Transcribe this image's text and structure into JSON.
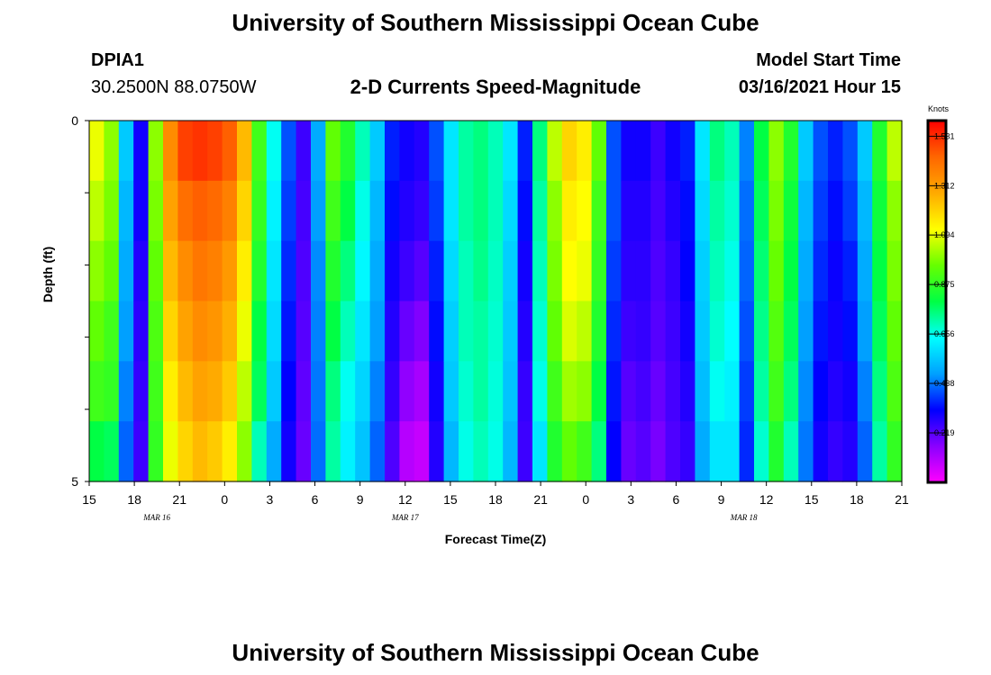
{
  "header": {
    "title": "University of Southern Mississippi Ocean Cube",
    "station": "DPIA1",
    "coords": "30.2500N 88.0750W",
    "chart_title": "2-D Currents Speed-Magnitude",
    "model_start_label": "Model Start Time",
    "model_start_value": "03/16/2021 Hour 15"
  },
  "footer": {
    "title": "University of Southern Mississippi Ocean Cube"
  },
  "colors": {
    "scale": [
      "#ff00ff",
      "#8a00ff",
      "#0000ff",
      "#00a0ff",
      "#00ffff",
      "#00ff44",
      "#66ff00",
      "#ffff00",
      "#ffaa00",
      "#ff6600",
      "#ff0000"
    ]
  },
  "chart_data": {
    "type": "heatmap",
    "title": "2-D Currents Speed-Magnitude",
    "xlabel": "Forecast Time(Z)",
    "ylabel": "Depth (ft)",
    "units": "Knots",
    "ylim": [
      0,
      5
    ],
    "y_tick_labels": [
      "0",
      "5"
    ],
    "x_tick_labels": [
      "15",
      "18",
      "21",
      "0",
      "3",
      "6",
      "9",
      "12",
      "15",
      "18",
      "21",
      "0",
      "3",
      "6",
      "9",
      "12",
      "15",
      "18",
      "21"
    ],
    "date_labels": [
      {
        "label": "MAR 16",
        "at_tick": 1.5
      },
      {
        "label": "MAR 17",
        "at_tick": 7
      },
      {
        "label": "MAR 18",
        "at_tick": 14.5
      }
    ],
    "colorbar": {
      "min": 0,
      "max": 1.6,
      "tick_labels": [
        "0.219",
        "0.438",
        "0.656",
        "0.875",
        "1.094",
        "1.312",
        "1.531"
      ]
    },
    "forecast_hours": 54,
    "depth_layers": 6,
    "speed_knots": [
      [
        1.1,
        1.05,
        1.0,
        0.95,
        0.9,
        0.8
      ],
      [
        1.0,
        0.98,
        0.95,
        0.9,
        0.88,
        0.78
      ],
      [
        0.55,
        0.52,
        0.5,
        0.48,
        0.45,
        0.42
      ],
      [
        0.3,
        0.3,
        0.28,
        0.27,
        0.26,
        0.25
      ],
      [
        1.0,
        0.98,
        0.95,
        0.92,
        0.9,
        0.88
      ],
      [
        1.35,
        1.3,
        1.25,
        1.2,
        1.15,
        1.1
      ],
      [
        1.5,
        1.42,
        1.35,
        1.3,
        1.25,
        1.2
      ],
      [
        1.52,
        1.45,
        1.4,
        1.35,
        1.3,
        1.25
      ],
      [
        1.5,
        1.43,
        1.38,
        1.33,
        1.28,
        1.22
      ],
      [
        1.45,
        1.38,
        1.32,
        1.27,
        1.22,
        1.15
      ],
      [
        1.25,
        1.2,
        1.15,
        1.1,
        1.05,
        1.0
      ],
      [
        0.9,
        0.88,
        0.85,
        0.8,
        0.78,
        0.7
      ],
      [
        0.65,
        0.62,
        0.6,
        0.58,
        0.55,
        0.5
      ],
      [
        0.4,
        0.38,
        0.36,
        0.34,
        0.32,
        0.3
      ],
      [
        0.25,
        0.24,
        0.23,
        0.22,
        0.21,
        0.2
      ],
      [
        0.5,
        0.48,
        0.46,
        0.45,
        0.44,
        0.43
      ],
      [
        0.95,
        0.9,
        0.85,
        0.8,
        0.75,
        0.72
      ],
      [
        0.85,
        0.8,
        0.75,
        0.7,
        0.65,
        0.62
      ],
      [
        0.7,
        0.66,
        0.63,
        0.6,
        0.57,
        0.54
      ],
      [
        0.55,
        0.52,
        0.5,
        0.48,
        0.45,
        0.42
      ],
      [
        0.35,
        0.33,
        0.3,
        0.28,
        0.26,
        0.23
      ],
      [
        0.3,
        0.28,
        0.25,
        0.2,
        0.15,
        0.1
      ],
      [
        0.28,
        0.26,
        0.22,
        0.17,
        0.12,
        0.08
      ],
      [
        0.4,
        0.38,
        0.35,
        0.33,
        0.3,
        0.28
      ],
      [
        0.6,
        0.6,
        0.58,
        0.56,
        0.55,
        0.52
      ],
      [
        0.72,
        0.72,
        0.7,
        0.7,
        0.68,
        0.66
      ],
      [
        0.75,
        0.75,
        0.74,
        0.72,
        0.72,
        0.7
      ],
      [
        0.7,
        0.7,
        0.69,
        0.68,
        0.67,
        0.66
      ],
      [
        0.6,
        0.58,
        0.56,
        0.55,
        0.54,
        0.52
      ],
      [
        0.35,
        0.33,
        0.3,
        0.28,
        0.26,
        0.25
      ],
      [
        0.75,
        0.72,
        0.7,
        0.68,
        0.66,
        0.6
      ],
      [
        1.05,
        1.0,
        0.98,
        0.95,
        0.9,
        0.85
      ],
      [
        1.2,
        1.15,
        1.12,
        1.08,
        1.02,
        0.95
      ],
      [
        1.15,
        1.12,
        1.1,
        1.05,
        1.0,
        0.9
      ],
      [
        0.95,
        0.9,
        0.88,
        0.85,
        0.8,
        0.75
      ],
      [
        0.4,
        0.4,
        0.38,
        0.36,
        0.34,
        0.32
      ],
      [
        0.3,
        0.28,
        0.27,
        0.25,
        0.22,
        0.2
      ],
      [
        0.3,
        0.28,
        0.27,
        0.26,
        0.24,
        0.22
      ],
      [
        0.25,
        0.24,
        0.23,
        0.22,
        0.2,
        0.18
      ],
      [
        0.3,
        0.28,
        0.26,
        0.25,
        0.24,
        0.23
      ],
      [
        0.35,
        0.33,
        0.32,
        0.3,
        0.28,
        0.26
      ],
      [
        0.6,
        0.58,
        0.56,
        0.55,
        0.53,
        0.5
      ],
      [
        0.75,
        0.72,
        0.7,
        0.68,
        0.65,
        0.6
      ],
      [
        0.7,
        0.68,
        0.66,
        0.64,
        0.62,
        0.6
      ],
      [
        0.45,
        0.43,
        0.42,
        0.4,
        0.38,
        0.36
      ],
      [
        0.8,
        0.78,
        0.76,
        0.74,
        0.72,
        0.68
      ],
      [
        1.0,
        0.98,
        0.96,
        0.93,
        0.9,
        0.85
      ],
      [
        0.85,
        0.82,
        0.8,
        0.78,
        0.75,
        0.7
      ],
      [
        0.55,
        0.52,
        0.5,
        0.48,
        0.46,
        0.44
      ],
      [
        0.4,
        0.38,
        0.36,
        0.34,
        0.32,
        0.3
      ],
      [
        0.35,
        0.33,
        0.31,
        0.3,
        0.28,
        0.26
      ],
      [
        0.4,
        0.38,
        0.35,
        0.33,
        0.3,
        0.28
      ],
      [
        0.55,
        0.52,
        0.5,
        0.48,
        0.45,
        0.42
      ],
      [
        0.85,
        0.82,
        0.8,
        0.78,
        0.75,
        0.72
      ],
      [
        1.05,
        1.0,
        0.98,
        0.95,
        0.92,
        0.88
      ]
    ]
  }
}
